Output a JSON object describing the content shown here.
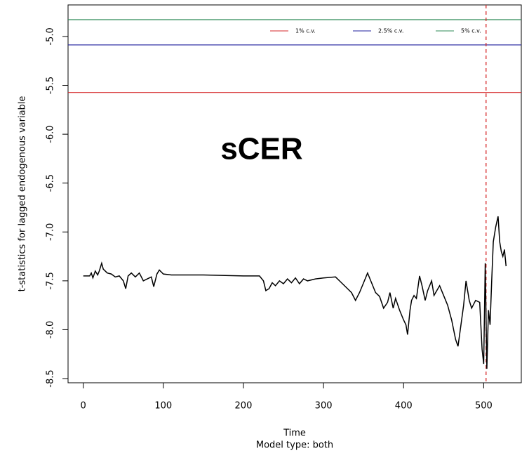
{
  "chart_data": {
    "type": "line",
    "annotation": "sCER",
    "xlabel": "Time",
    "subtitle": "Model type: both",
    "ylabel": "t-statistics for lagged endogenous variable",
    "color": "#000000",
    "xlim": [
      -19,
      547
    ],
    "ylim": [
      -8.543,
      -4.677
    ],
    "xticks": [
      0,
      100,
      200,
      300,
      400,
      500
    ],
    "yticks": [
      {
        "value": -5,
        "label": "-5.0"
      },
      {
        "value": -5.5,
        "label": "-5.5"
      },
      {
        "value": -6,
        "label": "-6.0"
      },
      {
        "value": -6.5,
        "label": "-6.5"
      },
      {
        "value": -7,
        "label": "-7.0"
      },
      {
        "value": -7.5,
        "label": "-7.5"
      },
      {
        "value": -8,
        "label": "-8.0"
      },
      {
        "value": -8.5,
        "label": "-8.5"
      }
    ],
    "hlines": [
      {
        "name": "1% c.v.",
        "color": "#d62728",
        "value": -5.573
      },
      {
        "name": "2.5% c.v.",
        "color": "#1f1f9e",
        "value": -5.086
      },
      {
        "name": "5% c.v.",
        "color": "#2e8b57",
        "value": -4.828
      }
    ],
    "vline": {
      "value": 503,
      "color": "#d62728"
    },
    "x": [
      0,
      8,
      10,
      12,
      15,
      18,
      20,
      23,
      25,
      30,
      35,
      40,
      45,
      50,
      53,
      56,
      60,
      65,
      70,
      75,
      80,
      85,
      88,
      92,
      95,
      100,
      110,
      150,
      200,
      220,
      225,
      228,
      232,
      236,
      240,
      245,
      250,
      255,
      260,
      265,
      270,
      275,
      280,
      290,
      300,
      315,
      320,
      330,
      335,
      340,
      345,
      350,
      355,
      360,
      365,
      370,
      375,
      380,
      383,
      387,
      390,
      395,
      400,
      403,
      405,
      408,
      410,
      413,
      416,
      420,
      423,
      427,
      430,
      435,
      438,
      440,
      445,
      450,
      455,
      460,
      465,
      468,
      470,
      475,
      478,
      482,
      485,
      490,
      495,
      498,
      500,
      502,
      504,
      506,
      508,
      510,
      512,
      515,
      518,
      520,
      522,
      524,
      526,
      528
    ],
    "values": [
      -7.45,
      -7.45,
      -7.42,
      -7.47,
      -7.4,
      -7.44,
      -7.4,
      -7.32,
      -7.38,
      -7.42,
      -7.43,
      -7.46,
      -7.45,
      -7.5,
      -7.58,
      -7.45,
      -7.42,
      -7.46,
      -7.42,
      -7.5,
      -7.48,
      -7.46,
      -7.56,
      -7.43,
      -7.39,
      -7.43,
      -7.44,
      -7.44,
      -7.45,
      -7.45,
      -7.5,
      -7.6,
      -7.58,
      -7.52,
      -7.55,
      -7.5,
      -7.53,
      -7.48,
      -7.52,
      -7.47,
      -7.53,
      -7.48,
      -7.5,
      -7.48,
      -7.47,
      -7.46,
      -7.5,
      -7.58,
      -7.62,
      -7.7,
      -7.62,
      -7.52,
      -7.42,
      -7.52,
      -7.62,
      -7.66,
      -7.78,
      -7.72,
      -7.62,
      -7.78,
      -7.68,
      -7.8,
      -7.9,
      -7.95,
      -8.05,
      -7.8,
      -7.7,
      -7.65,
      -7.68,
      -7.45,
      -7.55,
      -7.7,
      -7.6,
      -7.5,
      -7.65,
      -7.62,
      -7.55,
      -7.65,
      -7.75,
      -7.9,
      -8.1,
      -8.17,
      -8.05,
      -7.75,
      -7.5,
      -7.7,
      -7.78,
      -7.7,
      -7.72,
      -8.2,
      -8.35,
      -7.32,
      -8.4,
      -7.8,
      -7.95,
      -7.5,
      -7.1,
      -6.95,
      -6.84,
      -7.1,
      -7.2,
      -7.25,
      -7.18,
      -7.35
    ]
  }
}
